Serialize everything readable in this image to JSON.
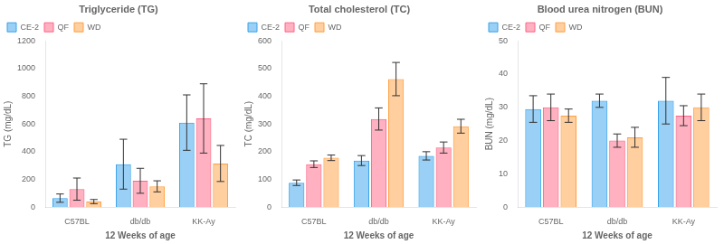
{
  "chart_data": [
    {
      "type": "bar",
      "title": "Triglyceride (TG)",
      "xlabel": "12 Weeks of age",
      "ylabel": "TG (mg/dL)",
      "categories": [
        "C57BL",
        "db/db",
        "KK-Ay"
      ],
      "series": [
        {
          "name": "CE-2",
          "values": [
            65,
            310,
            610
          ],
          "errors": [
            30,
            180,
            200
          ]
        },
        {
          "name": "QF",
          "values": [
            130,
            190,
            640
          ],
          "errors": [
            80,
            90,
            250
          ]
        },
        {
          "name": "WD",
          "values": [
            40,
            150,
            315
          ],
          "errors": [
            15,
            40,
            130
          ]
        }
      ],
      "ylim": [
        0,
        1200
      ],
      "yticks": [
        0,
        200,
        400,
        600,
        800,
        1000,
        1200
      ],
      "grid": false,
      "legend": "upper left"
    },
    {
      "type": "bar",
      "title": "Total cholesterol (TC)",
      "xlabel": "12 Weeks of age",
      "ylabel": "TC (mg/dL)",
      "categories": [
        "C57BL",
        "db/db",
        "KK-Ay"
      ],
      "series": [
        {
          "name": "CE-2",
          "values": [
            88,
            168,
            185
          ],
          "errors": [
            10,
            18,
            15
          ]
        },
        {
          "name": "QF",
          "values": [
            155,
            318,
            215
          ],
          "errors": [
            12,
            40,
            20
          ]
        },
        {
          "name": "WD",
          "values": [
            178,
            462,
            292
          ],
          "errors": [
            10,
            60,
            25
          ]
        }
      ],
      "ylim": [
        0,
        600
      ],
      "yticks": [
        0,
        100,
        200,
        300,
        400,
        500,
        600
      ],
      "grid": false,
      "legend": "upper left"
    },
    {
      "type": "bar",
      "title": "Blood urea nitrogen (BUN)",
      "xlabel": "12 Weeks of age",
      "ylabel": "BUN (mg/dL)",
      "categories": [
        "C57BL",
        "db/db",
        "KK-Ay"
      ],
      "series": [
        {
          "name": "CE-2",
          "values": [
            29.5,
            32,
            32
          ],
          "errors": [
            4,
            2,
            7
          ]
        },
        {
          "name": "QF",
          "values": [
            30,
            20,
            27.5
          ],
          "errors": [
            4,
            2,
            3
          ]
        },
        {
          "name": "WD",
          "values": [
            27.5,
            21,
            30
          ],
          "errors": [
            2,
            3,
            4
          ]
        }
      ],
      "ylim": [
        0,
        50
      ],
      "yticks": [
        0,
        10,
        20,
        30,
        40,
        50
      ],
      "grid": false,
      "legend": "upper left"
    }
  ]
}
